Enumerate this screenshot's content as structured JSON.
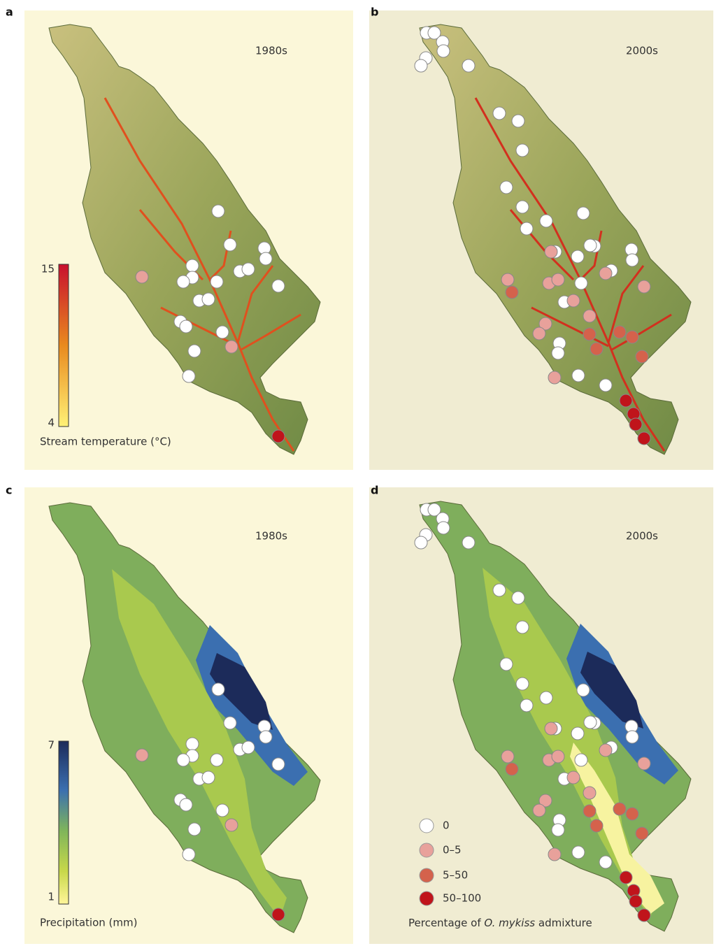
{
  "panels": [
    {
      "letter": "a",
      "period": "1980s"
    },
    {
      "letter": "b",
      "period": "2000s"
    },
    {
      "letter": "c",
      "period": "1980s"
    },
    {
      "letter": "d",
      "period": "2000s"
    }
  ],
  "temperature_scale": {
    "max": "15",
    "min": "4",
    "label": "Stream temperature (°C)"
  },
  "precipitation_scale": {
    "max": "7",
    "min": "1",
    "label": "Precipitation (mm)"
  },
  "admixture_legend": {
    "classes": [
      "0",
      "0–5",
      "5–50",
      "50–100"
    ],
    "title_before": "Percentage of ",
    "title_species": "O. mykiss",
    "title_after": " admixture"
  }
}
